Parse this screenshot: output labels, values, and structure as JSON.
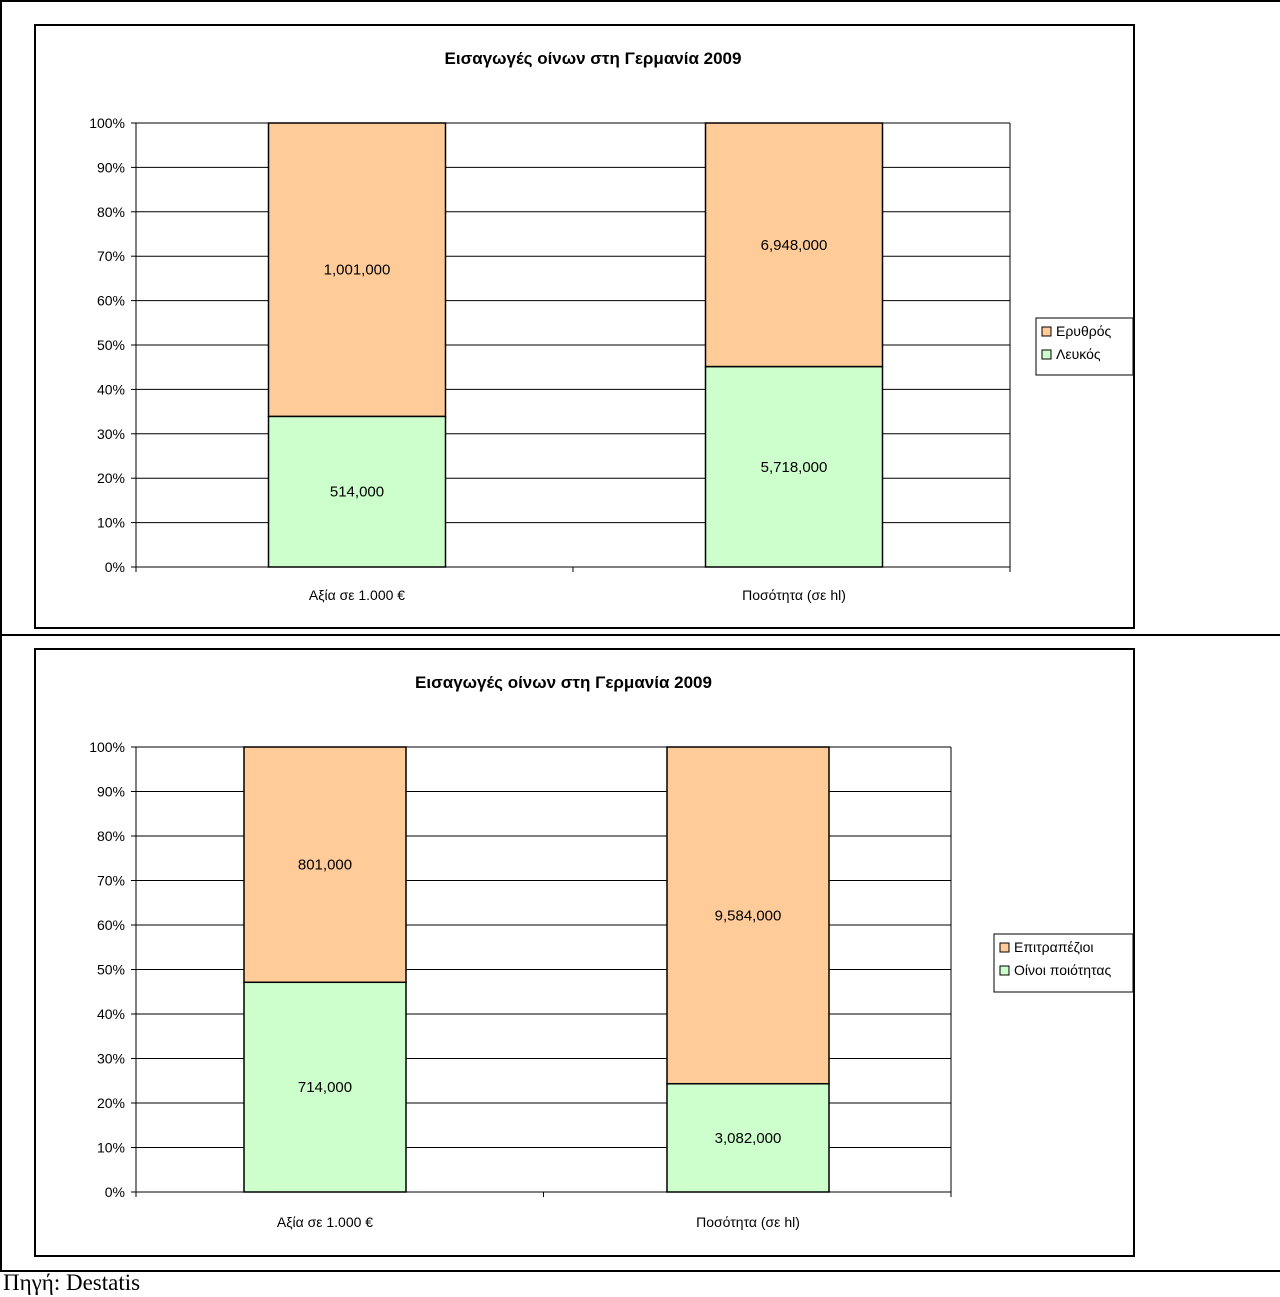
{
  "colors": {
    "bottom_segment": "#ccffcc",
    "top_segment": "#ffcc99",
    "outline": "#000000",
    "grid": "#000000"
  },
  "chart_data": [
    {
      "type": "bar",
      "stacked": "percent",
      "title": "Εισαγωγές οίνων στη Γερμανία 2009",
      "categories": [
        "Αξία σε 1.000 €",
        "Ποσότητα (σε hl)"
      ],
      "series": [
        {
          "name": "Λευκός",
          "values": [
            514000,
            5718000
          ],
          "labels": [
            "514,000",
            "5,718,000"
          ]
        },
        {
          "name": "Ερυθρός",
          "values": [
            1001000,
            6948000
          ],
          "labels": [
            "1,001,000",
            "6,948,000"
          ]
        }
      ],
      "yticks": [
        "0%",
        "10%",
        "20%",
        "30%",
        "40%",
        "50%",
        "60%",
        "70%",
        "80%",
        "90%",
        "100%"
      ],
      "ylim": [
        0,
        100
      ],
      "grid": true,
      "legend": [
        "Ερυθρός",
        "Λευκός"
      ],
      "legend_position": "right"
    },
    {
      "type": "bar",
      "stacked": "percent",
      "title": "Εισαγωγές οίνων στη Γερμανία 2009",
      "categories": [
        "Αξία σε 1.000 €",
        "Ποσότητα (σε hl)"
      ],
      "series": [
        {
          "name": "Οίνοι ποιότητας",
          "values": [
            714000,
            3082000
          ],
          "labels": [
            "714,000",
            "3,082,000"
          ]
        },
        {
          "name": "Επιτραπέζιοι",
          "values": [
            801000,
            9584000
          ],
          "labels": [
            "801,000",
            "9,584,000"
          ]
        }
      ],
      "yticks": [
        "0%",
        "10%",
        "20%",
        "30%",
        "40%",
        "50%",
        "60%",
        "70%",
        "80%",
        "90%",
        "100%"
      ],
      "ylim": [
        0,
        100
      ],
      "grid": true,
      "legend": [
        "Επιτραπέζιοι",
        "Οίνοι ποιότητας"
      ],
      "legend_position": "right"
    }
  ],
  "footer": {
    "source": "Πηγή: Destatis"
  }
}
